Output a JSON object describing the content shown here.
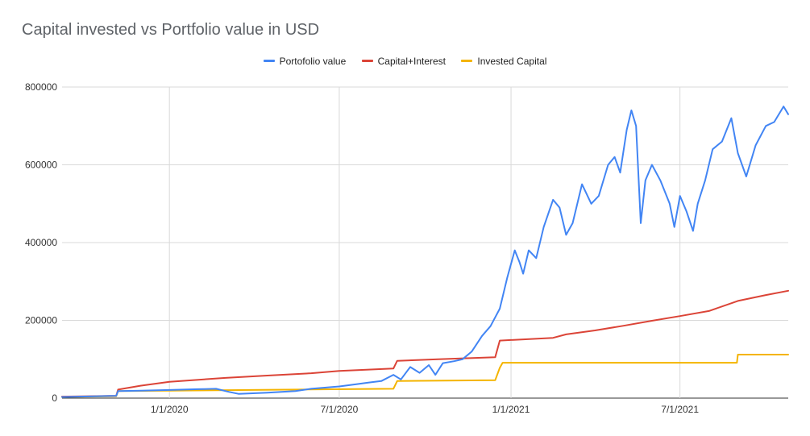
{
  "chart_data": {
    "type": "line",
    "title": "Capital invested vs Portfolio value in USD",
    "xlabel": "",
    "ylabel": "",
    "ylim": [
      0,
      800000
    ],
    "y_ticks": [
      "0",
      "200000",
      "400000",
      "600000",
      "800000"
    ],
    "y_tick_values": [
      0,
      200000,
      400000,
      600000,
      800000
    ],
    "x_ticks": [
      "1/1/2020",
      "7/1/2020",
      "1/1/2021",
      "7/1/2021"
    ],
    "x_tick_dates": [
      "2020-01-01",
      "2020-07-01",
      "2021-01-01",
      "2021-07-01"
    ],
    "xlim": [
      "2019-09-08",
      "2021-10-25"
    ],
    "grid": true,
    "legend_position": "top",
    "series": [
      {
        "name": "Portofolio value",
        "color": "#4285f4",
        "points": [
          [
            "2019-09-08",
            3000
          ],
          [
            "2019-11-05",
            6000
          ],
          [
            "2019-11-07",
            18000
          ],
          [
            "2019-12-01",
            19000
          ],
          [
            "2020-01-01",
            21000
          ],
          [
            "2020-02-01",
            23000
          ],
          [
            "2020-02-20",
            24000
          ],
          [
            "2020-03-05",
            16000
          ],
          [
            "2020-03-15",
            11000
          ],
          [
            "2020-04-15",
            14000
          ],
          [
            "2020-05-15",
            18000
          ],
          [
            "2020-06-01",
            24000
          ],
          [
            "2020-07-01",
            30000
          ],
          [
            "2020-07-20",
            36000
          ],
          [
            "2020-08-01",
            40000
          ],
          [
            "2020-08-15",
            44000
          ],
          [
            "2020-08-28",
            60000
          ],
          [
            "2020-09-05",
            48000
          ],
          [
            "2020-09-15",
            80000
          ],
          [
            "2020-09-25",
            65000
          ],
          [
            "2020-10-05",
            85000
          ],
          [
            "2020-10-12",
            60000
          ],
          [
            "2020-10-20",
            90000
          ],
          [
            "2020-11-01",
            95000
          ],
          [
            "2020-11-10",
            100000
          ],
          [
            "2020-11-20",
            120000
          ],
          [
            "2020-12-01",
            160000
          ],
          [
            "2020-12-10",
            185000
          ],
          [
            "2020-12-20",
            230000
          ],
          [
            "2020-12-28",
            310000
          ],
          [
            "2021-01-05",
            380000
          ],
          [
            "2021-01-10",
            350000
          ],
          [
            "2021-01-14",
            320000
          ],
          [
            "2021-01-20",
            380000
          ],
          [
            "2021-01-28",
            360000
          ],
          [
            "2021-02-05",
            440000
          ],
          [
            "2021-02-15",
            510000
          ],
          [
            "2021-02-22",
            490000
          ],
          [
            "2021-03-01",
            420000
          ],
          [
            "2021-03-08",
            450000
          ],
          [
            "2021-03-18",
            550000
          ],
          [
            "2021-03-28",
            500000
          ],
          [
            "2021-04-05",
            520000
          ],
          [
            "2021-04-15",
            600000
          ],
          [
            "2021-04-22",
            620000
          ],
          [
            "2021-04-28",
            580000
          ],
          [
            "2021-05-05",
            690000
          ],
          [
            "2021-05-10",
            740000
          ],
          [
            "2021-05-15",
            700000
          ],
          [
            "2021-05-20",
            450000
          ],
          [
            "2021-05-25",
            560000
          ],
          [
            "2021-06-01",
            600000
          ],
          [
            "2021-06-10",
            560000
          ],
          [
            "2021-06-20",
            500000
          ],
          [
            "2021-06-25",
            440000
          ],
          [
            "2021-07-01",
            520000
          ],
          [
            "2021-07-08",
            480000
          ],
          [
            "2021-07-15",
            430000
          ],
          [
            "2021-07-20",
            500000
          ],
          [
            "2021-07-28",
            560000
          ],
          [
            "2021-08-05",
            640000
          ],
          [
            "2021-08-15",
            660000
          ],
          [
            "2021-08-25",
            720000
          ],
          [
            "2021-09-01",
            630000
          ],
          [
            "2021-09-10",
            570000
          ],
          [
            "2021-09-20",
            650000
          ],
          [
            "2021-10-01",
            700000
          ],
          [
            "2021-10-10",
            710000
          ],
          [
            "2021-10-20",
            750000
          ],
          [
            "2021-10-25",
            730000
          ]
        ]
      },
      {
        "name": "Capital+Interest",
        "color": "#db4437",
        "points": [
          [
            "2019-09-08",
            4000
          ],
          [
            "2019-11-05",
            6000
          ],
          [
            "2019-11-07",
            22000
          ],
          [
            "2019-12-01",
            32000
          ],
          [
            "2020-01-01",
            42000
          ],
          [
            "2020-03-01",
            52000
          ],
          [
            "2020-04-15",
            58000
          ],
          [
            "2020-06-01",
            64000
          ],
          [
            "2020-07-01",
            70000
          ],
          [
            "2020-08-28",
            76000
          ],
          [
            "2020-09-01",
            96000
          ],
          [
            "2020-10-15",
            100000
          ],
          [
            "2020-12-15",
            105000
          ],
          [
            "2020-12-20",
            148000
          ],
          [
            "2021-02-15",
            155000
          ],
          [
            "2021-03-01",
            164000
          ],
          [
            "2021-04-01",
            174000
          ],
          [
            "2021-05-01",
            186000
          ],
          [
            "2021-06-01",
            199000
          ],
          [
            "2021-07-01",
            211000
          ],
          [
            "2021-08-01",
            224000
          ],
          [
            "2021-09-01",
            250000
          ],
          [
            "2021-10-01",
            265000
          ],
          [
            "2021-10-25",
            276000
          ]
        ]
      },
      {
        "name": "Invested Capital",
        "color": "#f4b400",
        "points": [
          [
            "2019-09-08",
            3000
          ],
          [
            "2019-11-05",
            5000
          ],
          [
            "2019-11-07",
            18000
          ],
          [
            "2020-08-28",
            24000
          ],
          [
            "2020-09-01",
            44000
          ],
          [
            "2020-12-15",
            46000
          ],
          [
            "2020-12-20",
            78000
          ],
          [
            "2020-12-23",
            91000
          ],
          [
            "2021-08-31",
            91000
          ],
          [
            "2021-09-01",
            112000
          ],
          [
            "2021-10-25",
            112000
          ]
        ]
      }
    ]
  }
}
